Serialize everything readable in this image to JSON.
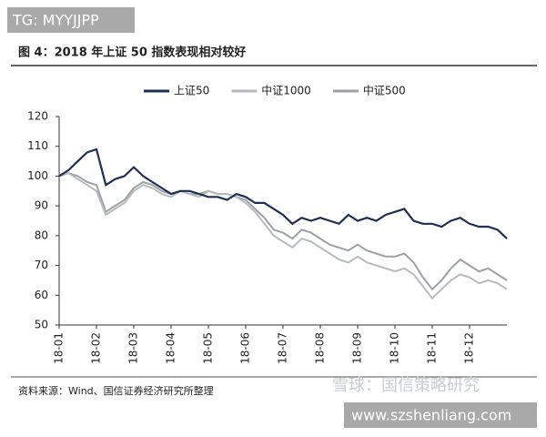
{
  "header": {
    "tag": "TG: MYYJJPP"
  },
  "chart_data": {
    "type": "line",
    "title": "图 4：2018 年上证 50 指数表现相对较好",
    "categories": [
      "18-01",
      null,
      null,
      null,
      "18-02",
      null,
      null,
      null,
      "18-03",
      null,
      null,
      null,
      "18-04",
      null,
      null,
      null,
      "18-05",
      null,
      null,
      null,
      "18-06",
      null,
      null,
      null,
      "18-07",
      null,
      null,
      null,
      "18-08",
      null,
      null,
      null,
      "18-09",
      null,
      null,
      null,
      "18-10",
      null,
      null,
      null,
      "18-11",
      null,
      null,
      null,
      "18-12",
      null,
      null,
      null,
      null
    ],
    "series": [
      {
        "name": "上证50",
        "color": "#1f2f52",
        "values": [
          100,
          102,
          105,
          108,
          109,
          97,
          99,
          100,
          103,
          100,
          98,
          96,
          94,
          95,
          95,
          94,
          93,
          93,
          92,
          94,
          93,
          91,
          91,
          89,
          87,
          84,
          86,
          85,
          86,
          85,
          84,
          87,
          85,
          86,
          85,
          87,
          88,
          89,
          85,
          84,
          84,
          83,
          85,
          86,
          84,
          83,
          83,
          82,
          79
        ]
      },
      {
        "name": "中证1000",
        "color": "#b7babd",
        "values": [
          100,
          101,
          99,
          97,
          95,
          87,
          89,
          91,
          95,
          97,
          96,
          94,
          93,
          95,
          94,
          93,
          95,
          94,
          94,
          93,
          91,
          88,
          84,
          80,
          78,
          76,
          79,
          78,
          76,
          74,
          72,
          71,
          73,
          71,
          70,
          69,
          68,
          69,
          67,
          63,
          59,
          62,
          65,
          67,
          66,
          64,
          65,
          64,
          62
        ]
      },
      {
        "name": "中证500",
        "color": "#9da1a5",
        "values": [
          100,
          101,
          100,
          98,
          97,
          88,
          90,
          92,
          96,
          98,
          97,
          95,
          94,
          95,
          94,
          94,
          95,
          94,
          94,
          93,
          92,
          89,
          86,
          82,
          81,
          79,
          82,
          81,
          79,
          77,
          76,
          75,
          77,
          75,
          74,
          73,
          73,
          74,
          71,
          66,
          62,
          65,
          69,
          72,
          70,
          68,
          69,
          67,
          65
        ]
      }
    ],
    "ylim": [
      50,
      120
    ],
    "yticks": [
      50,
      60,
      70,
      80,
      90,
      100,
      110,
      120
    ],
    "grid": false,
    "source": "资料来源：Wind、国信证券经济研究所整理"
  },
  "footer": {
    "watermark": "雪球：国信策略研究",
    "url": "www.szshenliang.com"
  }
}
